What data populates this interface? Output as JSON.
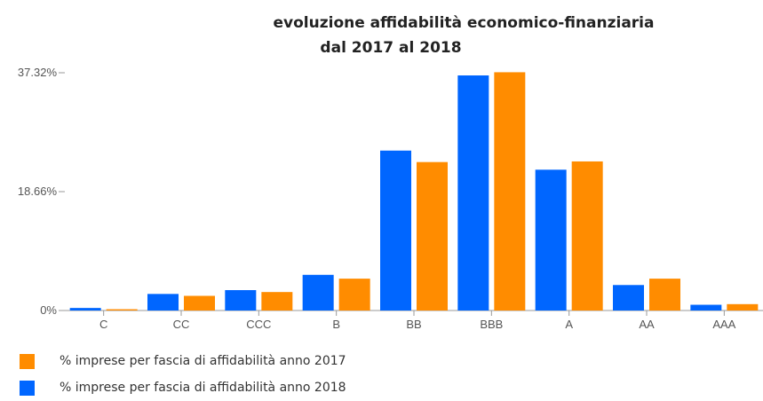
{
  "chart_data": {
    "type": "bar",
    "title": [
      "evoluzione affidabilità economico-finanziaria",
      "dal 2017 al 2018"
    ],
    "categories": [
      "C",
      "CC",
      "CCC",
      "B",
      "BB",
      "BBB",
      "A",
      "AA",
      "AAA"
    ],
    "series": [
      {
        "name": "% imprese per fascia di affidabilità anno 2018",
        "color": "#0066ff",
        "values": [
          0.4,
          2.6,
          3.2,
          5.6,
          25.1,
          36.9,
          22.1,
          4.0,
          0.9
        ]
      },
      {
        "name": "% imprese per fascia di affidabilità anno 2017",
        "color": "#ff8c00",
        "values": [
          0.2,
          2.3,
          2.9,
          5.0,
          23.3,
          37.4,
          23.4,
          5.0,
          1.0
        ]
      }
    ],
    "yticks": [
      {
        "value": 0,
        "label": "0%"
      },
      {
        "value": 18.66,
        "label": "18.66%"
      },
      {
        "value": 37.32,
        "label": "37.32%"
      }
    ],
    "ylim": [
      0,
      37.32
    ],
    "grid": false,
    "legend_position": "bottom-left"
  },
  "legend": [
    {
      "label": "% imprese per fascia di affidabilità anno 2017",
      "color": "#ff8c00"
    },
    {
      "label": "% imprese per fascia di affidabilità anno 2018",
      "color": "#0066ff"
    }
  ]
}
